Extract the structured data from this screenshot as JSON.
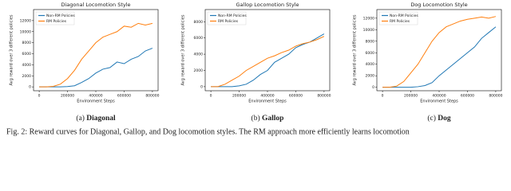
{
  "chart_data": [
    {
      "type": "line",
      "title": "Diagonal Locomotion Style",
      "x_label": "Environment Steps",
      "y_label": "Avg reward over 3 different policies",
      "x": [
        0,
        50000,
        100000,
        150000,
        200000,
        250000,
        300000,
        350000,
        400000,
        450000,
        500000,
        550000,
        600000,
        650000,
        700000,
        750000,
        800000
      ],
      "series": [
        {
          "name": "Non-RM Policies",
          "color": "#1f77b4",
          "values": [
            0,
            0,
            0,
            0,
            50,
            200,
            800,
            1500,
            2500,
            3200,
            3500,
            4500,
            4200,
            5000,
            5500,
            6500,
            7000
          ]
        },
        {
          "name": "RM Policies",
          "color": "#ff7f0e",
          "values": [
            0,
            0,
            100,
            500,
            1500,
            3000,
            5000,
            6500,
            8000,
            9000,
            9500,
            10000,
            11000,
            10800,
            11500,
            11200,
            11500
          ]
        }
      ],
      "xlim": [
        -40000,
        840000
      ],
      "xticks": [
        0,
        200000,
        400000,
        600000,
        800000
      ],
      "ylim": [
        -700,
        14000
      ],
      "yticks": [
        0,
        2000,
        4000,
        6000,
        8000,
        10000,
        12000
      ],
      "legend": "upper left",
      "caption_label": "(a)",
      "caption_name": "Diagonal"
    },
    {
      "type": "line",
      "title": "Gallop Locomotion Style",
      "x_label": "Environment Steps",
      "y_label": "Avg reward over 3 different policies",
      "x": [
        0,
        50000,
        100000,
        150000,
        200000,
        250000,
        300000,
        350000,
        400000,
        450000,
        500000,
        550000,
        600000,
        650000,
        700000,
        750000,
        800000
      ],
      "series": [
        {
          "name": "Non-RM Policies",
          "color": "#1f77b4",
          "values": [
            0,
            0,
            0,
            0,
            100,
            300,
            800,
            1500,
            2000,
            3000,
            3500,
            4000,
            4800,
            5200,
            5500,
            6000,
            6500
          ]
        },
        {
          "name": "RM Policies",
          "color": "#ff7f0e",
          "values": [
            0,
            0,
            300,
            800,
            1300,
            2000,
            2500,
            3000,
            3500,
            3800,
            4200,
            4500,
            5000,
            5300,
            5500,
            5800,
            6200
          ]
        }
      ],
      "xlim": [
        -40000,
        840000
      ],
      "xticks": [
        0,
        200000,
        400000,
        600000,
        800000
      ],
      "ylim": [
        -500,
        9500
      ],
      "yticks": [
        0,
        2000,
        4000,
        6000,
        8000
      ],
      "legend": "upper left",
      "caption_label": "(b)",
      "caption_name": "Gallop"
    },
    {
      "type": "line",
      "title": "Dog Locomotion Style",
      "x_label": "Environment Steps",
      "y_label": "Avg reward over 3 different policies",
      "x": [
        0,
        50000,
        100000,
        150000,
        200000,
        250000,
        300000,
        350000,
        400000,
        450000,
        500000,
        550000,
        600000,
        650000,
        700000,
        750000,
        800000
      ],
      "series": [
        {
          "name": "Non-RM Policies",
          "color": "#1f77b4",
          "values": [
            0,
            0,
            0,
            0,
            0,
            100,
            300,
            800,
            2000,
            3000,
            4000,
            5000,
            6000,
            7000,
            8500,
            9500,
            10500
          ]
        },
        {
          "name": "RM Policies",
          "color": "#ff7f0e",
          "values": [
            0,
            0,
            200,
            1000,
            2500,
            4000,
            6000,
            8000,
            9500,
            10500,
            11000,
            11500,
            11800,
            12000,
            12200,
            12000,
            12300
          ]
        }
      ],
      "xlim": [
        -40000,
        840000
      ],
      "xticks": [
        0,
        200000,
        400000,
        600000,
        800000
      ],
      "ylim": [
        -600,
        13500
      ],
      "yticks": [
        0,
        2000,
        4000,
        6000,
        8000,
        10000,
        12000
      ],
      "legend": "upper left",
      "caption_label": "(c)",
      "caption_name": "Dog"
    }
  ],
  "figure_caption": "Fig. 2: Reward curves for Diagonal, Gallop, and Dog locomotion styles. The RM approach more efficiently learns locomotion"
}
